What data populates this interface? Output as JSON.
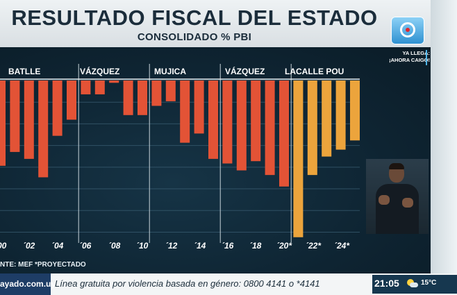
{
  "header": {
    "title": "RESULTADO FISCAL DEL ESTADO",
    "subtitle": "CONSOLIDADO % PBI"
  },
  "logo": {
    "icon": "channel-10-logo-icon"
  },
  "promo": {
    "line1": "YA LLEGA:",
    "line2": "¡AHORA CAIGO!"
  },
  "chart_data": {
    "type": "bar",
    "title": "RESULTADO FISCAL DEL ESTADO",
    "subtitle": "CONSOLIDADO % PBI",
    "source": "NTE: MEF *PROYECTADO",
    "years": [
      1999,
      2000,
      2001,
      2002,
      2003,
      2004,
      2005,
      2006,
      2007,
      2008,
      2009,
      2010,
      2011,
      2012,
      2013,
      2014,
      2015,
      2016,
      2017,
      2018,
      2019,
      2020,
      2021,
      2022,
      2023,
      2024
    ],
    "values": [
      -3.7,
      -3.1,
      -3.4,
      -4.2,
      -2.4,
      -1.7,
      -0.6,
      -0.6,
      -0.1,
      -1.5,
      -1.5,
      -1.1,
      -0.9,
      -2.7,
      -2.3,
      -3.4,
      -3.6,
      -3.9,
      -3.5,
      -4.1,
      -4.6,
      -6.8,
      -4.1,
      -3.3,
      -3.0,
      -2.6
    ],
    "projected_from": 2020,
    "colors": {
      "actual": "#e35336",
      "projected": "#eca43c"
    },
    "y_range": [
      -7.5,
      0
    ],
    "x_tick_labels": [
      "00",
      "´02",
      "´04",
      "´06",
      "´08",
      "´10",
      "´12",
      "´14",
      "´16",
      "´18",
      "´20*",
      "´22*",
      "´24*"
    ],
    "periods": [
      {
        "name": "BATLLE",
        "from": 1999,
        "to": 2004
      },
      {
        "name": "VÁZQUEZ",
        "from": 2005,
        "to": 2009
      },
      {
        "name": "MUJICA",
        "from": 2010,
        "to": 2014
      },
      {
        "name": "VÁZQUEZ",
        "from": 2015,
        "to": 2019
      },
      {
        "name": "LACALLE POU",
        "from": 2020,
        "to": 2024
      }
    ]
  },
  "ticker": {
    "site": "ayado.com.uy",
    "message": "Línea gratuita por violencia basada en género: 0800 4141 o *4141",
    "time": "21:05",
    "temperature": "15°C",
    "weather_icon": "partly-cloudy-icon"
  }
}
